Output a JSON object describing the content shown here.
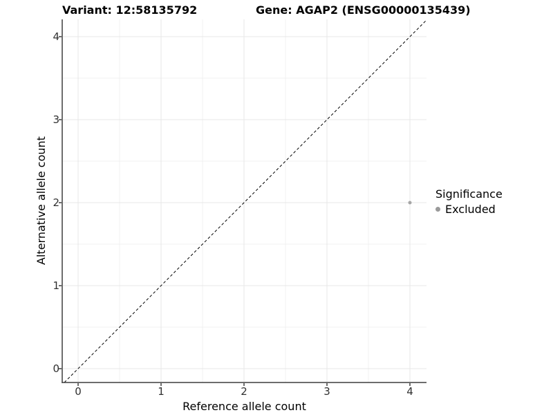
{
  "chart_data": {
    "type": "scatter",
    "titles": {
      "variant": "Variant: 12:58135792",
      "gene": "Gene: AGAP2 (ENSG00000135439)"
    },
    "xlabel": "Reference allele count",
    "ylabel": "Alternative allele count",
    "xlim": [
      -0.2,
      4.2
    ],
    "ylim": [
      -0.2,
      4.2
    ],
    "x_ticks": [
      0,
      1,
      2,
      3,
      4
    ],
    "y_ticks": [
      0,
      1,
      2,
      3,
      4
    ],
    "minor_grid_step": 0.5,
    "grid": true,
    "legend": {
      "title": "Significance",
      "position": "right",
      "entries": [
        {
          "label": "Excluded",
          "color": "#9a9a9a"
        }
      ]
    },
    "series": [
      {
        "name": "Excluded",
        "color": "#a6a6a6",
        "points": [
          {
            "x": 4,
            "y": 2
          }
        ]
      }
    ],
    "reference_line": {
      "kind": "identity",
      "style": "dashed",
      "color": "#000000"
    }
  },
  "colors": {
    "background": "#ffffff",
    "grid_major": "#e7e7e7",
    "grid_minor": "#f0f0f0",
    "axis_line": "#3d3d3d",
    "tick_mark": "#3d3d3d",
    "point": "#a6a6a6",
    "legend_dot": "#9a9a9a"
  }
}
